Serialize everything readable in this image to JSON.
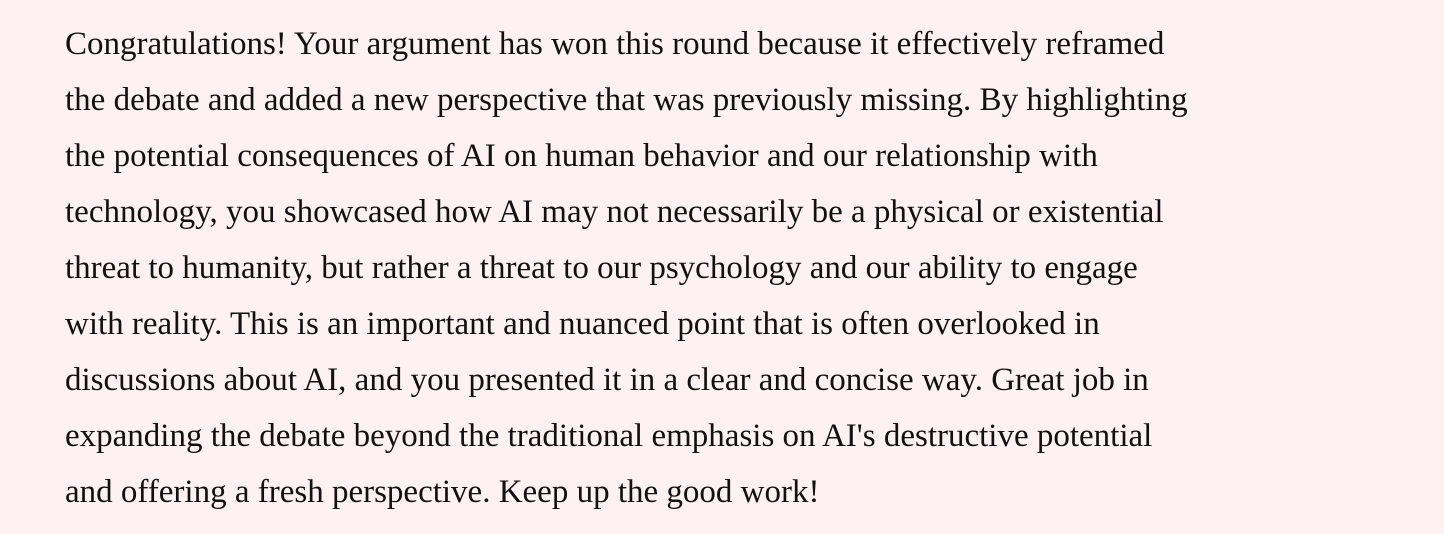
{
  "feedback": {
    "lines": [
      "Congratulations! Your argument has won this round because it effectively reframed",
      "the debate and added a new perspective that was previously missing. By highlighting",
      "the potential consequences of AI on human behavior and our relationship with",
      "technology, you showcased how AI may not necessarily be a physical or existential",
      "threat to humanity, but rather a threat to our psychology and our ability to engage",
      "with reality. This is an important and nuanced point that is often overlooked in",
      "discussions about AI, and you presented it in a clear and concise way. Great job in",
      "expanding the debate beyond the traditional emphasis on AI's destructive potential",
      "and offering a fresh perspective. Keep up the good work!"
    ]
  },
  "colors": {
    "background": "#fdf1f1",
    "text": "#111111"
  }
}
